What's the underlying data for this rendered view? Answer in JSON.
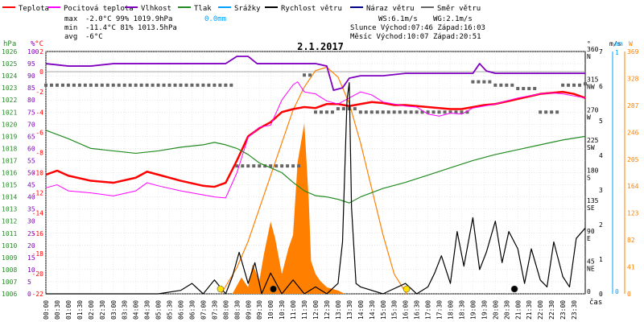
{
  "legend": [
    {
      "label": "Teplota",
      "color": "#ff0000"
    },
    {
      "label": "Pocitová teplota",
      "color": "#ff00ff"
    },
    {
      "label": "Vlhkost",
      "color": "#8000c0"
    },
    {
      "label": "Tlak",
      "color": "#228b22"
    },
    {
      "label": "Srážky",
      "color": "#00a0ff"
    },
    {
      "label": "Rychlost větru",
      "color": "#000000"
    },
    {
      "label": "Náraz větru",
      "color": "#00008b"
    },
    {
      "label": "Směr větru",
      "color": "#666666"
    }
  ],
  "stats": {
    "max_label": "max",
    "max_values": "-2.0°C  99%  1019.9hPa",
    "min_label": "min",
    "min_values": "-11.4°C 81%  1013.5hPa",
    "avg_label": "avg",
    "avg_values": "-6°C",
    "precip": "0.0mm",
    "ws": "WS:6.1m/s",
    "wg": "WG:2.1m/s",
    "sun_line": "Slunce Východ:07:46   Západ:16:03",
    "moon_line": "Měsíc  Východ:10:07   Západ:20:51"
  },
  "chart_data": {
    "type": "line",
    "title": "2.1.2017",
    "xlabel": "čas",
    "x_ticks": [
      "00:00",
      "00:30",
      "01:00",
      "01:30",
      "02:00",
      "02:30",
      "03:00",
      "03:30",
      "04:00",
      "04:30",
      "05:00",
      "05:30",
      "06:00",
      "06:30",
      "07:00",
      "07:30",
      "08:00",
      "08:30",
      "09:00",
      "09:30",
      "10:00",
      "10:30",
      "11:00",
      "11:30",
      "12:00",
      "12:30",
      "13:00",
      "13:30",
      "14:00",
      "14:30",
      "15:00",
      "15:30",
      "16:00",
      "16:30",
      "17:00",
      "17:30",
      "18:00",
      "18:30",
      "19:00",
      "19:30",
      "20:00",
      "20:30",
      "21:00",
      "21:30",
      "22:00",
      "22:30",
      "23:00",
      "23:30"
    ],
    "axes": {
      "hPa": {
        "label": "hPa",
        "range": [
          1006,
          1026
        ],
        "ticks": [
          "1026",
          "1025",
          "1024",
          "1023",
          "1022",
          "1021",
          "1020",
          "1019",
          "1018",
          "1017",
          "1016",
          "1015",
          "1014",
          "1013",
          "1012",
          "1011",
          "1010",
          "1009",
          "1008",
          "1007",
          "1006"
        ]
      },
      "percent": {
        "label": "%",
        "range": [
          0,
          100
        ],
        "ticks": [
          "100",
          "95",
          "90",
          "85",
          "80",
          "75",
          "70",
          "65",
          "60",
          "55",
          "50",
          "45",
          "40",
          "35",
          "30",
          "25",
          "20",
          "15",
          "10",
          "5",
          "0"
        ]
      },
      "celsius": {
        "label": "°C",
        "range": [
          -22,
          2
        ],
        "ticks": [
          "2",
          "0",
          "-2",
          "-4",
          "-6",
          "-8",
          "-10",
          "-12",
          "-14",
          "-16",
          "-18",
          "-20",
          "-22"
        ]
      },
      "direction": {
        "label": "°",
        "ticks": [
          {
            "deg": "360",
            "dir": "N"
          },
          {
            "deg": "315",
            "dir": "NW"
          },
          {
            "deg": "270",
            "dir": "W"
          },
          {
            "deg": "225",
            "dir": "SW"
          },
          {
            "deg": "180",
            "dir": "S"
          },
          {
            "deg": "135",
            "dir": "SE"
          },
          {
            "deg": "90",
            "dir": "E"
          },
          {
            "deg": "45",
            "dir": "NE"
          },
          {
            "deg": "0",
            "dir": ""
          }
        ]
      },
      "wind": {
        "label": "m/s",
        "range": [
          0,
          7
        ],
        "ticks": [
          "7",
          "6",
          "5",
          "4",
          "3",
          "2",
          "1",
          "0"
        ]
      },
      "precip": {
        "label": "mm",
        "range": [
          0,
          1
        ],
        "ticks": [
          "1",
          "0"
        ]
      },
      "radiation": {
        "label": "W",
        "range": [
          0,
          369
        ],
        "ticks": [
          "369",
          "328",
          "287",
          "246",
          "205",
          "164",
          "123",
          "82",
          "41",
          "0"
        ]
      }
    },
    "series": [
      {
        "name": "Teplota",
        "axis": "celsius",
        "x": [
          0,
          0.5,
          1,
          2,
          3,
          4,
          4.5,
          5,
          6,
          7,
          7.5,
          8,
          8.5,
          9,
          9.5,
          10,
          10.5,
          11,
          11.5,
          12,
          12.5,
          13,
          13.5,
          14,
          14.5,
          15,
          15.5,
          16,
          16.5,
          17,
          17.5,
          18,
          18.5,
          19,
          19.5,
          20,
          21,
          22,
          22.5,
          23,
          23.5,
          24
        ],
        "y": [
          -10.2,
          -9.8,
          -10.3,
          -10.8,
          -11,
          -10.5,
          -9.9,
          -10.2,
          -10.8,
          -11.3,
          -11.4,
          -11,
          -8.8,
          -6.4,
          -5.6,
          -5,
          -4,
          -3.7,
          -3.5,
          -3.6,
          -3.2,
          -3.2,
          -3.4,
          -3.2,
          -3,
          -3.1,
          -3.3,
          -3.3,
          -3.4,
          -3.5,
          -3.6,
          -3.7,
          -3.7,
          -3.5,
          -3.3,
          -3.2,
          -2.7,
          -2.2,
          -2.1,
          -2,
          -2.2,
          -2.6
        ]
      },
      {
        "name": "Pocitová teplota",
        "axis": "celsius",
        "x": [
          0,
          0.5,
          1,
          2,
          3,
          4,
          4.5,
          5,
          6,
          7,
          7.5,
          8,
          8.5,
          9,
          9.5,
          10,
          10.5,
          11,
          11.2,
          11.5,
          12,
          12.5,
          13,
          13.5,
          14,
          14.5,
          15,
          15.5,
          16,
          16.5,
          17,
          17.5,
          18,
          18.5,
          19,
          19.5,
          20,
          21,
          22,
          22.5,
          23,
          23.5,
          24
        ],
        "y": [
          -11.5,
          -11.2,
          -11.8,
          -12,
          -12.3,
          -11.8,
          -11,
          -11.3,
          -11.8,
          -12.2,
          -12.4,
          -12.5,
          -10,
          -6.5,
          -5.5,
          -5.3,
          -2.8,
          -1.3,
          -1,
          -2,
          -2.2,
          -2.9,
          -3.2,
          -2.6,
          -2,
          -2.3,
          -3,
          -3.2,
          -3.4,
          -3.5,
          -4.2,
          -4.4,
          -4.1,
          -4.2,
          -3.6,
          -3.4,
          -3.2,
          -2.6,
          -2.2,
          -2.1,
          -2.2,
          -2.4,
          -2.6
        ]
      },
      {
        "name": "Vlhkost",
        "axis": "percent",
        "x": [
          0,
          1,
          2,
          3,
          4,
          5,
          6,
          7,
          8,
          8.5,
          9,
          9.4,
          10,
          11,
          12,
          12.5,
          12.8,
          13.2,
          13.5,
          14,
          15,
          16,
          17,
          18,
          19,
          19.3,
          19.6,
          20,
          21,
          22,
          23,
          24
        ],
        "y": [
          95,
          94,
          94,
          95,
          95,
          95,
          95,
          95,
          95,
          98,
          98,
          95,
          95,
          95,
          95,
          94,
          84,
          85,
          89,
          90,
          90,
          91,
          91,
          91,
          91,
          95,
          92,
          91,
          91,
          91,
          91,
          91
        ],
        "color": "#8000c0"
      },
      {
        "name": "Tlak",
        "axis": "hPa",
        "x": [
          0,
          1,
          2,
          3,
          4,
          5,
          6,
          7,
          7.5,
          8,
          8.5,
          9,
          9.5,
          10,
          10.5,
          11,
          11.5,
          12,
          12.5,
          13,
          13.5,
          14,
          15,
          16,
          17,
          18,
          19,
          20,
          21,
          22,
          23,
          24
        ],
        "y": [
          1019.5,
          1018.8,
          1018,
          1017.8,
          1017.6,
          1017.8,
          1018.1,
          1018.3,
          1018.5,
          1018.3,
          1018,
          1017.5,
          1016.8,
          1016.4,
          1016,
          1015.2,
          1014.5,
          1014.1,
          1014,
          1013.8,
          1013.5,
          1014,
          1014.7,
          1015.2,
          1015.8,
          1016.4,
          1017,
          1017.5,
          1017.9,
          1018.3,
          1018.7,
          1019
        ]
      },
      {
        "name": "Rychlost větru",
        "axis": "wind",
        "x": [
          0,
          5,
          6,
          6.5,
          7,
          7.5,
          8,
          8.3,
          8.6,
          9,
          9.3,
          9.6,
          10,
          10.5,
          11,
          11.5,
          12,
          12.5,
          13,
          13.2,
          13.4,
          13.5,
          13.6,
          13.8,
          14,
          15,
          16,
          16.5,
          17,
          17.3,
          17.6,
          18,
          18.3,
          18.6,
          19,
          19.3,
          19.6,
          20,
          20.3,
          20.6,
          21,
          21.3,
          21.6,
          22,
          22.3,
          22.6,
          23,
          23.3,
          23.6,
          24
        ],
        "y": [
          0,
          0,
          0.1,
          0.3,
          0,
          0.4,
          0,
          0.5,
          1.2,
          0.3,
          0.9,
          0,
          0.6,
          0,
          0.4,
          0,
          0.2,
          0,
          0.3,
          1.5,
          5.6,
          6.1,
          2.5,
          0.3,
          0.2,
          0,
          0.3,
          0,
          0.2,
          0.6,
          1.1,
          0.3,
          1.8,
          0.8,
          2.2,
          0.7,
          1.2,
          2.1,
          0.9,
          1.8,
          1.3,
          0.3,
          1.3,
          0.4,
          0.2,
          1.5,
          0.5,
          0.2,
          1.6,
          1.9
        ]
      }
    ],
    "wind_direction": {
      "axis": "direction",
      "x": [
        0,
        1,
        2,
        3,
        4,
        5,
        6,
        7,
        8,
        8.5,
        9,
        10,
        11,
        11.5,
        12,
        13,
        14,
        15,
        16,
        17,
        18,
        19,
        20,
        21,
        22,
        23,
        24
      ],
      "y": [
        310,
        310,
        310,
        310,
        310,
        310,
        310,
        310,
        310,
        190,
        190,
        190,
        190,
        325,
        270,
        275,
        270,
        270,
        270,
        270,
        270,
        315,
        310,
        305,
        270,
        310,
        312
      ]
    },
    "radiation": {
      "axis": "radiation",
      "x": [
        7.8,
        8.5,
        9,
        9.5,
        10,
        10.5,
        11,
        11.5,
        12,
        12.5,
        13,
        13.5,
        14,
        14.5,
        15,
        15.5,
        16.05
      ],
      "y": [
        0,
        40,
        80,
        130,
        180,
        230,
        280,
        315,
        340,
        345,
        330,
        290,
        230,
        160,
        90,
        30,
        0
      ]
    },
    "solar_fill": {
      "axis": "radiation",
      "x": [
        8.3,
        8.7,
        9,
        9.2,
        9.5,
        9.7,
        10,
        10.2,
        10.5,
        10.8,
        11,
        11.2,
        11.5,
        11.7,
        11.8,
        12,
        12.2,
        12.5,
        13,
        13.3
      ],
      "y": [
        0,
        25,
        10,
        45,
        20,
        60,
        110,
        85,
        30,
        70,
        90,
        200,
        260,
        140,
        50,
        30,
        20,
        10,
        5,
        0
      ]
    },
    "precip_x": [],
    "precip_y": []
  }
}
